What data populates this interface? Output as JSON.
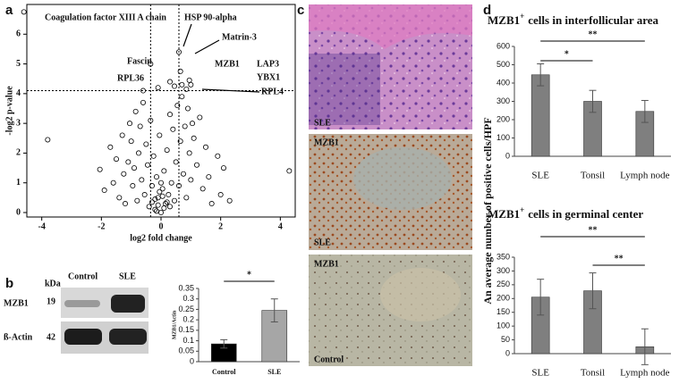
{
  "panel_labels": [
    "a",
    "b",
    "c",
    "d"
  ],
  "blot": {
    "kda": "kDa",
    "lanes": [
      "Control",
      "SLE"
    ],
    "rows": [
      {
        "name": "MZB1",
        "kda": "19"
      },
      {
        "name": "ß-Actin",
        "kda": "42"
      }
    ]
  },
  "micrographs": [
    {
      "labels": [
        "SLE"
      ]
    },
    {
      "labels": [
        "MZB1",
        "SLE"
      ]
    },
    {
      "labels": [
        "MZB1",
        "Control"
      ]
    }
  ],
  "chart_data": [
    {
      "type": "scatter",
      "xlabel": "log2 fold change",
      "ylabel": "-log2 p-value",
      "x": [
        -4.6,
        -3.8,
        -2.05,
        -1.9,
        -1.7,
        -1.6,
        -1.5,
        -1.4,
        -1.3,
        -1.25,
        -1.2,
        -1.1,
        -1.05,
        -1.0,
        -0.95,
        -0.9,
        -0.85,
        -0.8,
        -0.75,
        -0.7,
        -0.65,
        -0.6,
        -0.55,
        -0.5,
        -0.45,
        -0.4,
        -0.35,
        -0.3,
        -0.25,
        -0.2,
        -0.15,
        -0.1,
        -0.05,
        0,
        0.05,
        0.1,
        0.15,
        0.2,
        0.25,
        0.3,
        0.35,
        0.4,
        0.45,
        0.5,
        0.55,
        0.6,
        0.65,
        0.7,
        0.75,
        0.8,
        0.85,
        0.9,
        0.95,
        1.0,
        1.05,
        1.1,
        1.2,
        1.3,
        1.4,
        1.5,
        1.6,
        1.7,
        1.9,
        2.0,
        2.1,
        2.3,
        4.3,
        -0.35,
        -0.1,
        0.6,
        0.65,
        0.7,
        0.95,
        1.0,
        0.85,
        -0.2,
        -0.1,
        0.1,
        0.05,
        -0.05,
        0.2,
        -0.3,
        0.3,
        -0.15,
        0.0,
        -0.6,
        0.3,
        0.45
      ],
      "y": [
        6.75,
        2.45,
        1.45,
        0.75,
        2.2,
        1.0,
        1.8,
        0.5,
        2.6,
        1.3,
        0.3,
        1.7,
        3.0,
        2.4,
        0.9,
        1.5,
        3.4,
        0.4,
        2.0,
        2.9,
        1.1,
        3.7,
        0.6,
        2.3,
        1.6,
        0.2,
        3.1,
        0.9,
        1.9,
        0.1,
        1.2,
        0.5,
        2.6,
        0.0,
        0.8,
        1.4,
        0.3,
        2.1,
        0.6,
        3.3,
        1.0,
        2.8,
        0.4,
        1.7,
        3.6,
        0.9,
        2.4,
        3.9,
        1.3,
        2.9,
        0.5,
        3.5,
        2.0,
        1.1,
        3.0,
        2.5,
        1.6,
        3.2,
        0.8,
        2.2,
        1.2,
        0.3,
        1.9,
        0.6,
        1.5,
        0.4,
        1.4,
        5.0,
        4.2,
        5.4,
        4.75,
        4.3,
        4.45,
        4.3,
        4.15,
        0.45,
        0.25,
        0.15,
        0.55,
        0.7,
        0.35,
        0.35,
        0.2,
        0.05,
        1.0,
        4.1,
        4.4,
        4.25
      ],
      "xlim": [
        -4.5,
        4.5
      ],
      "ylim": [
        -0.15,
        7
      ],
      "xticks": [
        -4,
        -2,
        0,
        2,
        4
      ],
      "yticks": [
        0,
        1,
        2,
        3,
        4,
        5,
        6
      ],
      "threshold_x": [
        -0.35,
        0.6
      ],
      "threshold_y": [
        4.1
      ],
      "annotations": [
        "Coagulation factor XIII A chain",
        "HSP 90-alpha",
        "Matrin-3",
        "Fascin",
        "RPL36",
        "MZB1",
        "LAP3",
        "YBX1",
        "RPL4"
      ]
    },
    {
      "type": "bar",
      "ylabel": "MZB1/Actin",
      "categories": [
        "Control",
        "SLE"
      ],
      "values": [
        0.085,
        0.245
      ],
      "errors": [
        0.02,
        0.055
      ],
      "colors": [
        "#000000",
        "#a6a6a6"
      ],
      "ylim": [
        0,
        0.35
      ],
      "yticks": [
        0,
        0.05,
        0.1,
        0.15,
        0.2,
        0.25,
        0.3,
        0.35
      ],
      "significance": [
        {
          "pair": [
            0,
            1
          ],
          "label": "*"
        }
      ]
    },
    {
      "type": "bar",
      "title": "MZB1",
      "title_sup": "+",
      "title_rest": "cells in interfollicular area",
      "ylabel": "An average number of positive cells/HPF",
      "categories": [
        "SLE",
        "Tonsil",
        "Lymph  node"
      ],
      "values": [
        445,
        300,
        245
      ],
      "errors": [
        60,
        60,
        60
      ],
      "color": "#7f7f7f",
      "ylim": [
        0,
        600
      ],
      "yticks": [
        0,
        100,
        200,
        300,
        400,
        500,
        600
      ],
      "significance": [
        {
          "pair": [
            0,
            2
          ],
          "label": "**"
        },
        {
          "pair": [
            0,
            1
          ],
          "label": "*"
        }
      ]
    },
    {
      "type": "bar",
      "title": "MZB1",
      "title_sup": "+",
      "title_rest": "cells in germinal center",
      "categories": [
        "SLE",
        "Tonsil",
        "Lymph  node"
      ],
      "values": [
        205,
        228,
        25
      ],
      "errors": [
        65,
        65,
        65
      ],
      "color": "#7f7f7f",
      "ylim": [
        0,
        350
      ],
      "yticks": [
        0,
        50,
        100,
        150,
        200,
        250,
        300,
        350
      ],
      "significance": [
        {
          "pair": [
            0,
            2
          ],
          "label": "**"
        },
        {
          "pair": [
            1,
            2
          ],
          "label": "**"
        }
      ]
    }
  ]
}
